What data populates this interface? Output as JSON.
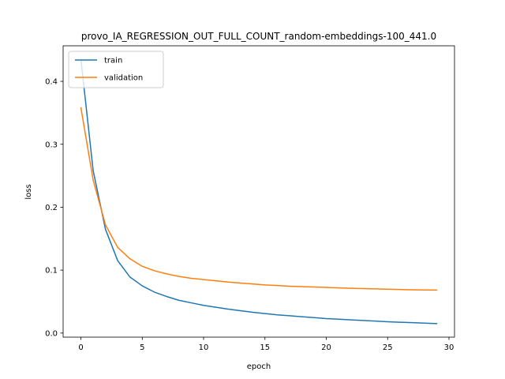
{
  "chart_data": {
    "type": "line",
    "title": "provo_IA_REGRESSION_OUT_FULL_COUNT_random-embeddings-100_441.0",
    "xlabel": "epoch",
    "ylabel": "loss",
    "xlim": [
      -1.45,
      30.45
    ],
    "ylim": [
      -0.0065,
      0.4565
    ],
    "xticks": [
      0,
      5,
      10,
      15,
      20,
      25,
      30
    ],
    "yticks": [
      0.0,
      0.1,
      0.2,
      0.3,
      0.4
    ],
    "xtick_labels": [
      "0",
      "5",
      "10",
      "15",
      "20",
      "25",
      "30"
    ],
    "ytick_labels": [
      "0.0",
      "0.1",
      "0.2",
      "0.3",
      "0.4"
    ],
    "legend": {
      "position": "upper-left"
    },
    "x": [
      0,
      1,
      2,
      3,
      4,
      5,
      6,
      7,
      8,
      9,
      10,
      11,
      12,
      13,
      14,
      15,
      16,
      17,
      18,
      19,
      20,
      21,
      22,
      23,
      24,
      25,
      26,
      27,
      28,
      29
    ],
    "series": [
      {
        "name": "train",
        "color": "#1f77b4",
        "values": [
          0.435,
          0.258,
          0.165,
          0.115,
          0.089,
          0.075,
          0.065,
          0.058,
          0.052,
          0.048,
          0.044,
          0.041,
          0.038,
          0.0355,
          0.033,
          0.031,
          0.029,
          0.0275,
          0.026,
          0.0245,
          0.023,
          0.022,
          0.021,
          0.02,
          0.019,
          0.018,
          0.0172,
          0.0165,
          0.0158,
          0.015
        ]
      },
      {
        "name": "validation",
        "color": "#ff7f0e",
        "values": [
          0.358,
          0.243,
          0.172,
          0.136,
          0.118,
          0.106,
          0.099,
          0.094,
          0.09,
          0.087,
          0.085,
          0.083,
          0.081,
          0.0795,
          0.078,
          0.0765,
          0.0755,
          0.0745,
          0.0738,
          0.0732,
          0.0725,
          0.0718,
          0.0712,
          0.0706,
          0.0702,
          0.0697,
          0.0692,
          0.0688,
          0.0685,
          0.0683
        ]
      }
    ]
  }
}
